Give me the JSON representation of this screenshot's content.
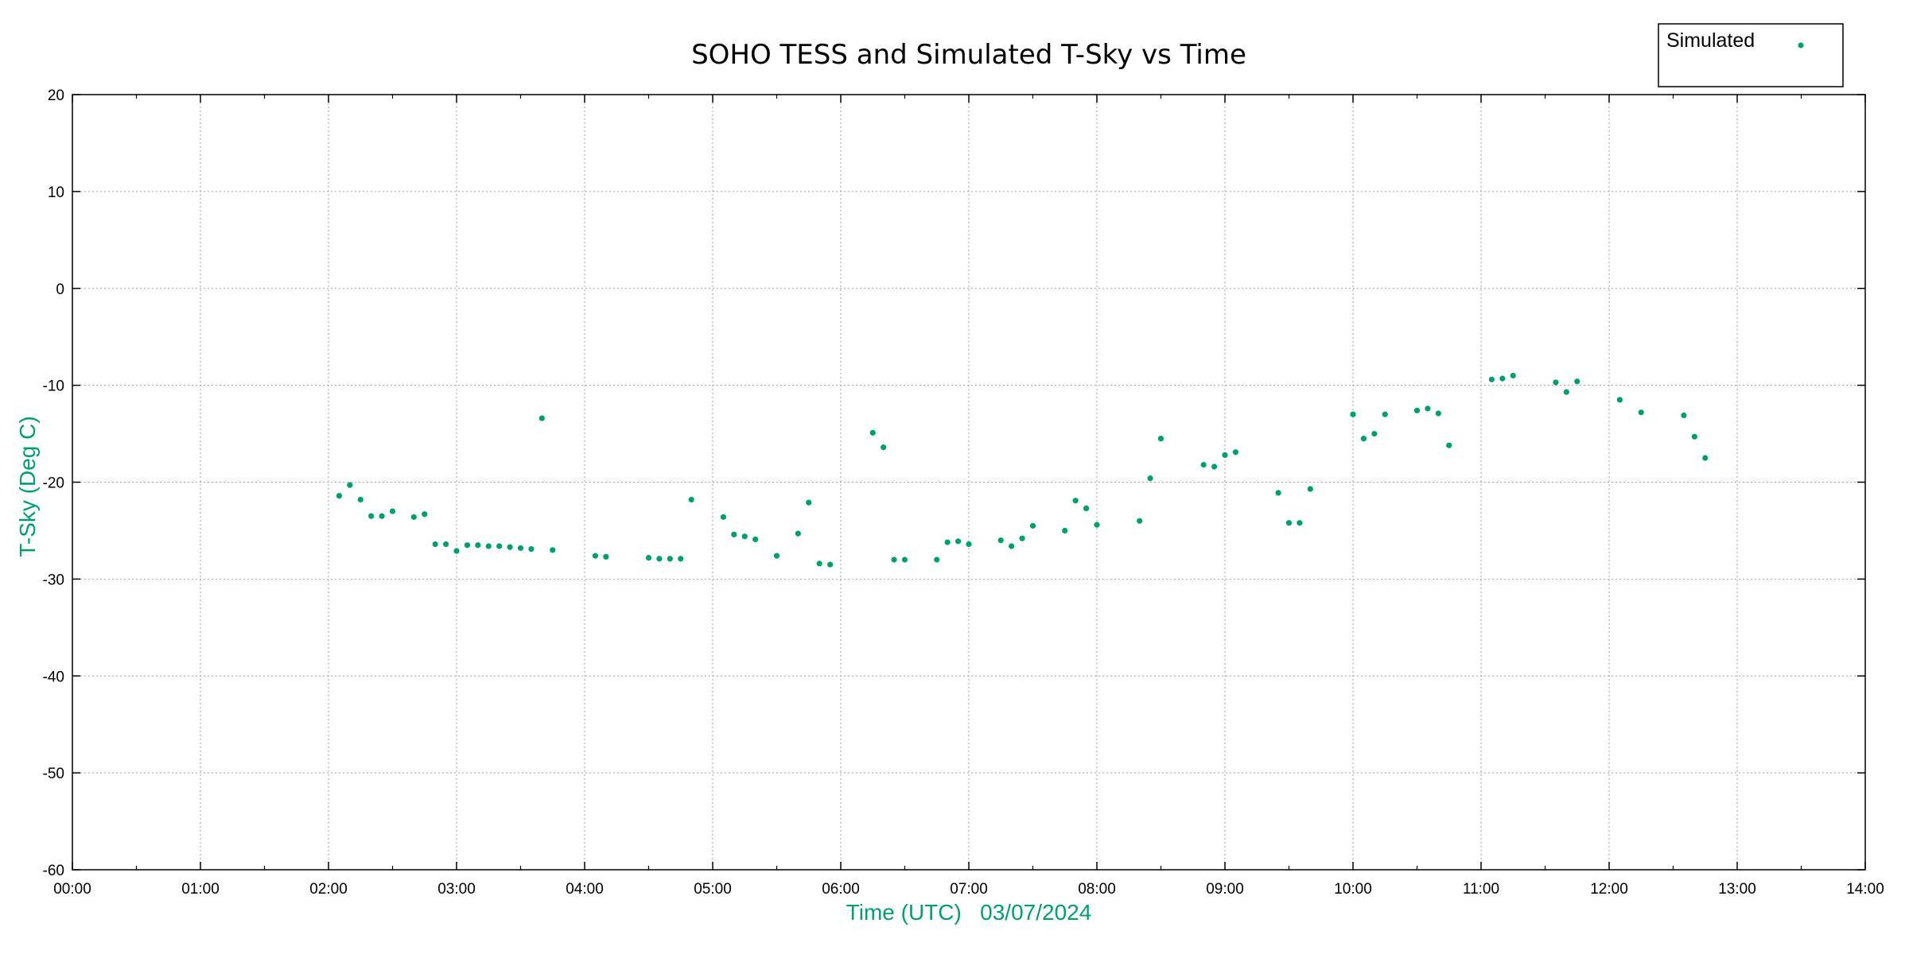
{
  "chart_data": {
    "type": "scatter",
    "title": "SOHO TESS and Simulated T-Sky vs Time",
    "xlabel": "Time (UTC)   03/07/2024",
    "ylabel": "T-Sky (Deg C)",
    "xlim": [
      "00:00",
      "14:00"
    ],
    "ylim": [
      -60,
      20
    ],
    "grid": true,
    "legend_position": "top-right",
    "x_ticks": [
      "00:00",
      "01:00",
      "02:00",
      "03:00",
      "04:00",
      "05:00",
      "06:00",
      "07:00",
      "08:00",
      "09:00",
      "10:00",
      "11:00",
      "12:00",
      "13:00",
      "14:00"
    ],
    "y_ticks": [
      20,
      10,
      0,
      -10,
      -20,
      -30,
      -40,
      -50,
      -60
    ],
    "colors": {
      "series": "#009e73",
      "label": "#009e73",
      "axis": "#000000",
      "grid": "#a0a0a0"
    },
    "series": [
      {
        "name": "Simulated",
        "marker": "dot",
        "points": [
          [
            "02:05",
            -21.4
          ],
          [
            "02:10",
            -20.3
          ],
          [
            "02:15",
            -21.8
          ],
          [
            "02:20",
            -23.5
          ],
          [
            "02:25",
            -23.5
          ],
          [
            "02:30",
            -23.0
          ],
          [
            "02:40",
            -23.6
          ],
          [
            "02:45",
            -23.3
          ],
          [
            "02:50",
            -26.4
          ],
          [
            "02:55",
            -26.4
          ],
          [
            "03:00",
            -27.1
          ],
          [
            "03:05",
            -26.5
          ],
          [
            "03:10",
            -26.5
          ],
          [
            "03:15",
            -26.6
          ],
          [
            "03:20",
            -26.6
          ],
          [
            "03:25",
            -26.7
          ],
          [
            "03:30",
            -26.8
          ],
          [
            "03:35",
            -26.9
          ],
          [
            "03:40",
            -13.4
          ],
          [
            "03:45",
            -27.0
          ],
          [
            "04:05",
            -27.6
          ],
          [
            "04:10",
            -27.7
          ],
          [
            "04:30",
            -27.8
          ],
          [
            "04:35",
            -27.9
          ],
          [
            "04:40",
            -27.9
          ],
          [
            "04:45",
            -27.9
          ],
          [
            "04:50",
            -21.8
          ],
          [
            "05:05",
            -23.6
          ],
          [
            "05:10",
            -25.4
          ],
          [
            "05:15",
            -25.6
          ],
          [
            "05:20",
            -25.9
          ],
          [
            "05:30",
            -27.6
          ],
          [
            "05:40",
            -25.3
          ],
          [
            "05:45",
            -22.1
          ],
          [
            "05:50",
            -28.4
          ],
          [
            "05:55",
            -28.5
          ],
          [
            "06:15",
            -14.9
          ],
          [
            "06:20",
            -16.4
          ],
          [
            "06:25",
            -28.0
          ],
          [
            "06:30",
            -28.0
          ],
          [
            "06:45",
            -28.0
          ],
          [
            "06:50",
            -26.2
          ],
          [
            "06:55",
            -26.1
          ],
          [
            "07:00",
            -26.4
          ],
          [
            "07:15",
            -26.0
          ],
          [
            "07:20",
            -26.6
          ],
          [
            "07:25",
            -25.8
          ],
          [
            "07:30",
            -24.5
          ],
          [
            "07:45",
            -25.0
          ],
          [
            "07:50",
            -21.9
          ],
          [
            "07:55",
            -22.7
          ],
          [
            "08:00",
            -24.4
          ],
          [
            "08:20",
            -24.0
          ],
          [
            "08:25",
            -19.6
          ],
          [
            "08:30",
            -15.5
          ],
          [
            "08:50",
            -18.2
          ],
          [
            "08:55",
            -18.4
          ],
          [
            "09:00",
            -17.2
          ],
          [
            "09:05",
            -16.9
          ],
          [
            "09:25",
            -21.1
          ],
          [
            "09:30",
            -24.2
          ],
          [
            "09:35",
            -24.2
          ],
          [
            "09:40",
            -20.7
          ],
          [
            "10:00",
            -13.0
          ],
          [
            "10:05",
            -15.5
          ],
          [
            "10:10",
            -15.0
          ],
          [
            "10:15",
            -13.0
          ],
          [
            "10:30",
            -12.6
          ],
          [
            "10:35",
            -12.4
          ],
          [
            "10:40",
            -12.9
          ],
          [
            "10:45",
            -16.2
          ],
          [
            "11:05",
            -9.4
          ],
          [
            "11:10",
            -9.3
          ],
          [
            "11:15",
            -9.0
          ],
          [
            "11:35",
            -9.7
          ],
          [
            "11:40",
            -10.7
          ],
          [
            "11:45",
            -9.6
          ],
          [
            "12:05",
            -11.5
          ],
          [
            "12:15",
            -12.8
          ],
          [
            "12:35",
            -13.1
          ],
          [
            "12:40",
            -15.3
          ],
          [
            "12:45",
            -17.5
          ]
        ]
      }
    ]
  }
}
